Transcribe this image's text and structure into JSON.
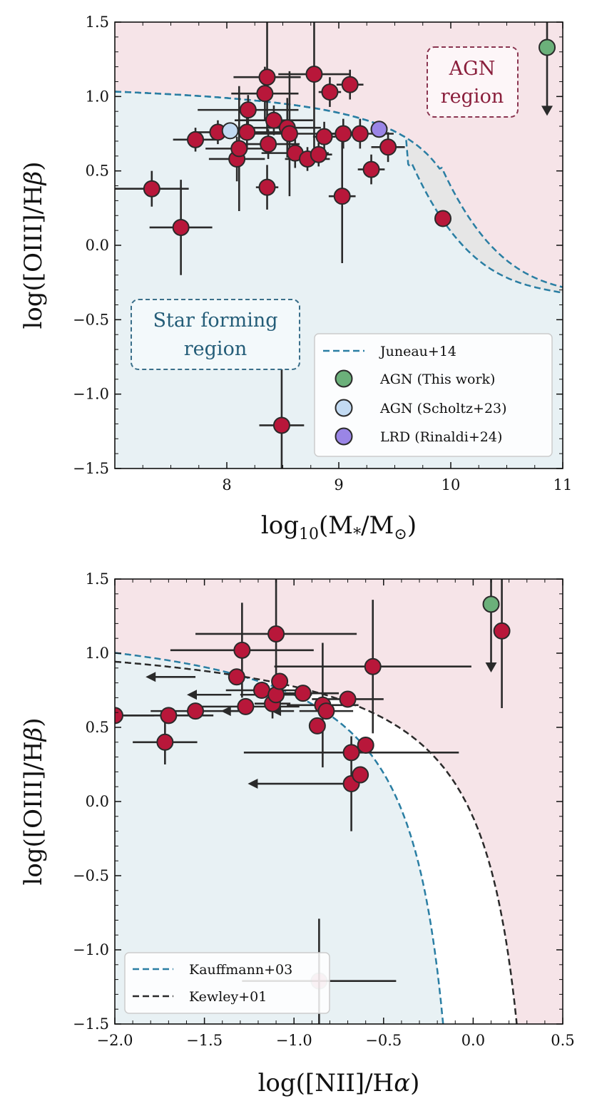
{
  "colors": {
    "agn_region": "#f6e4e8",
    "sf_region": "#e8f1f4",
    "gap_region": "#e6e6e6",
    "juneau_line": "#2a7ea3",
    "kauffmann_line": "#2a7ea3",
    "kewley_line": "#2a2a2a",
    "point_red": "#b8173a",
    "point_green": "#6bb07a",
    "point_lightblue": "#c2daf2",
    "point_purple": "#9a85e6",
    "errorbar": "#2a2a2a",
    "agn_box": "#8a3550",
    "sf_box": "#3a6f8a"
  },
  "chart_data": [
    {
      "type": "scatter",
      "panel": "top",
      "xlabel": "log10(M*/M⊙)",
      "ylabel": "log([OIII]/Hβ)",
      "xlim": [
        7.0,
        11.0
      ],
      "ylim": [
        -1.5,
        1.5
      ],
      "xticks": [
        8,
        9,
        10,
        11
      ],
      "xtick_labels": [
        "8",
        "9",
        "10",
        "11"
      ],
      "yticks": [
        -1.5,
        -1.0,
        -0.5,
        0.0,
        0.5,
        1.0,
        1.5
      ],
      "ytick_labels": [
        "−1.5",
        "−1.0",
        "−0.5",
        "0.0",
        "0.5",
        "1.0",
        "1.5"
      ],
      "region_labels": {
        "agn": [
          "AGN",
          "region"
        ],
        "sf": [
          "Star forming",
          "region"
        ]
      },
      "legend": [
        "Juneau+14",
        "AGN (This work)",
        "AGN (Scholtz+23)",
        "LRD (Rinaldi+24)"
      ],
      "series": [
        {
          "name": "sample",
          "color": "red",
          "points": [
            {
              "x": 7.33,
              "y": 0.38,
              "xerr": 0.33,
              "yerr": 0.12
            },
            {
              "x": 7.59,
              "y": 0.12,
              "xerr": 0.28,
              "yerr": 0.32
            },
            {
              "x": 7.72,
              "y": 0.71,
              "xerr": 0.2,
              "yerr": 0.08
            },
            {
              "x": 7.92,
              "y": 0.76,
              "xerr": 0.22,
              "yerr": 0.08
            },
            {
              "x": 8.09,
              "y": 0.58,
              "xerr": 0.25,
              "yerr": 0.15
            },
            {
              "x": 8.11,
              "y": 0.65,
              "xerr": 0.3,
              "yerr": 0.42
            },
            {
              "x": 8.18,
              "y": 0.76,
              "xerr": 0.3,
              "yerr": 0.12
            },
            {
              "x": 8.19,
              "y": 0.91,
              "xerr": 0.45,
              "yerr": 0.1
            },
            {
              "x": 8.34,
              "y": 1.02,
              "xerr": 0.3,
              "yerr": 0.18
            },
            {
              "x": 8.36,
              "y": 1.13,
              "xerr": 0.3,
              "yerr": 0.37
            },
            {
              "x": 8.37,
              "y": 0.68,
              "xerr": 0.28,
              "yerr": 0.1
            },
            {
              "x": 8.36,
              "y": 0.39,
              "xerr": 0.1,
              "yerr": 0.15
            },
            {
              "x": 8.42,
              "y": 0.84,
              "xerr": 0.35,
              "yerr": 0.1
            },
            {
              "x": 8.54,
              "y": 0.79,
              "xerr": 0.3,
              "yerr": 0.2
            },
            {
              "x": 8.56,
              "y": 0.75,
              "xerr": 0.42,
              "yerr": 0.42
            },
            {
              "x": 8.61,
              "y": 0.62,
              "xerr": 0.3,
              "yerr": 0.1
            },
            {
              "x": 8.72,
              "y": 0.58,
              "xerr": 0.2,
              "yerr": 0.08
            },
            {
              "x": 8.78,
              "y": 1.15,
              "xerr": 0.32,
              "yerr": 0.58
            },
            {
              "x": 8.82,
              "y": 0.61,
              "xerr": 0.12,
              "yerr": 0.08
            },
            {
              "x": 8.87,
              "y": 0.73,
              "xerr": 0.1,
              "yerr": 0.1
            },
            {
              "x": 8.92,
              "y": 1.03,
              "xerr": 0.1,
              "yerr": 0.1
            },
            {
              "x": 9.03,
              "y": 0.33,
              "xerr": 0.12,
              "yerr": 0.45
            },
            {
              "x": 9.04,
              "y": 0.75,
              "xerr": 0.18,
              "yerr": 0.1
            },
            {
              "x": 9.1,
              "y": 1.08,
              "xerr": 0.12,
              "yerr": 0.1
            },
            {
              "x": 9.19,
              "y": 0.75,
              "xerr": 0.3,
              "yerr": 0.1
            },
            {
              "x": 9.29,
              "y": 0.51,
              "xerr": 0.12,
              "yerr": 0.1
            },
            {
              "x": 9.44,
              "y": 0.66,
              "xerr": 0.15,
              "yerr": 0.1
            },
            {
              "x": 9.93,
              "y": 0.18,
              "xerr": 0.0,
              "yerr": 0.0
            },
            {
              "x": 8.49,
              "y": -1.21,
              "xerr": 0.2,
              "yerr": 0.42
            }
          ]
        },
        {
          "name": "AGN (This work)",
          "color": "green",
          "points": [
            {
              "x": 10.86,
              "y": 1.33,
              "upper_limit": true
            }
          ]
        },
        {
          "name": "AGN (Scholtz+23)",
          "color": "lightblue",
          "points": [
            {
              "x": 8.03,
              "y": 0.77
            }
          ]
        },
        {
          "name": "LRD (Rinaldi+24)",
          "color": "purple",
          "points": [
            {
              "x": 9.36,
              "y": 0.78
            }
          ]
        }
      ]
    },
    {
      "type": "scatter",
      "panel": "bottom",
      "xlabel": "log([NII]/Hα)",
      "ylabel": "log([OIII]/Hβ)",
      "xlim": [
        -2.0,
        0.5
      ],
      "ylim": [
        -1.5,
        1.5
      ],
      "xticks": [
        -2.0,
        -1.5,
        -1.0,
        -0.5,
        0.0,
        0.5
      ],
      "xtick_labels": [
        "−2.0",
        "−1.5",
        "−1.0",
        "−0.5",
        "0.0",
        "0.5"
      ],
      "yticks": [
        -1.5,
        -1.0,
        -0.5,
        0.0,
        0.5,
        1.0,
        1.5
      ],
      "ytick_labels": [
        "−1.5",
        "−1.0",
        "−0.5",
        "0.0",
        "0.5",
        "1.0",
        "1.5"
      ],
      "legend": [
        "Kauffmann+03",
        "Kewley+01"
      ],
      "series": [
        {
          "name": "sample",
          "color": "red",
          "points": [
            {
              "x": -2.0,
              "y": 0.58,
              "xerr": 0.22,
              "yerr": 0.0
            },
            {
              "x": -1.72,
              "y": 0.4,
              "xerr": 0.18,
              "yerr": 0.15
            },
            {
              "x": -1.7,
              "y": 0.58,
              "xerr": 0.25,
              "yerr": 0.0
            },
            {
              "x": -1.55,
              "y": 0.61,
              "xerr": 0.25,
              "yerr": 0.0
            },
            {
              "x": -1.32,
              "y": 0.84,
              "xerr": 0.0,
              "yerr": 0.0
            },
            {
              "x": -1.29,
              "y": 1.02,
              "xerr": 0.4,
              "yerr": 0.32
            },
            {
              "x": -1.27,
              "y": 0.64,
              "xerr": 0.3,
              "yerr": 0.0
            },
            {
              "x": -1.18,
              "y": 0.75,
              "xerr": 0.2,
              "yerr": 0.0
            },
            {
              "x": -1.12,
              "y": 0.66,
              "xerr": 0.1,
              "yerr": 0.1
            },
            {
              "x": -1.1,
              "y": 1.13,
              "xerr": 0.45,
              "yerr": 0.37
            },
            {
              "x": -1.1,
              "y": 0.72,
              "xerr": 0.2,
              "yerr": 0.1
            },
            {
              "x": -1.08,
              "y": 0.81,
              "xerr": 0.0,
              "yerr": 0.0
            },
            {
              "x": -0.95,
              "y": 0.73,
              "xerr": 0.2,
              "yerr": 0.0
            },
            {
              "x": -0.87,
              "y": 0.51,
              "xerr": 0.0,
              "yerr": 0.0
            },
            {
              "x": -0.84,
              "y": 0.65,
              "xerr": 0.2,
              "yerr": 0.42
            },
            {
              "x": -0.82,
              "y": 0.61,
              "xerr": 0.15,
              "yerr": 0.0
            },
            {
              "x": -0.7,
              "y": 0.69,
              "xerr": 0.2,
              "yerr": 0.0
            },
            {
              "x": -0.68,
              "y": 0.33,
              "xerr": 0.6,
              "yerr": 0.0
            },
            {
              "x": -0.68,
              "y": 0.12,
              "xerr": 0.0,
              "yerr": 0.32
            },
            {
              "x": -0.63,
              "y": 0.18,
              "xerr": 0.0,
              "yerr": 0.0
            },
            {
              "x": -0.6,
              "y": 0.38,
              "xerr": 0.0,
              "yerr": 0.0
            },
            {
              "x": -0.56,
              "y": 0.91,
              "xerr": 0.55,
              "yerr": 0.45
            },
            {
              "x": 0.16,
              "y": 1.15,
              "xerr": 0.0,
              "yerr": 0.52
            },
            {
              "x": -0.86,
              "y": -1.21,
              "xerr": 0.43,
              "yerr": 0.42,
              "faded": true
            }
          ],
          "upper_limit_arrows": [
            {
              "x": -1.55,
              "y": 0.84,
              "dx": -0.27
            },
            {
              "x": -1.35,
              "y": 0.72,
              "dx": -0.24
            },
            {
              "x": -1.25,
              "y": 0.61,
              "dx": -0.15
            },
            {
              "x": -1.0,
              "y": 0.61,
              "dx": -0.12
            },
            {
              "x": -0.7,
              "y": 0.12,
              "dx": -0.55
            }
          ]
        },
        {
          "name": "AGN (This work)",
          "color": "green",
          "points": [
            {
              "x": 0.1,
              "y": 1.33,
              "upper_limit": true
            }
          ]
        }
      ]
    }
  ]
}
